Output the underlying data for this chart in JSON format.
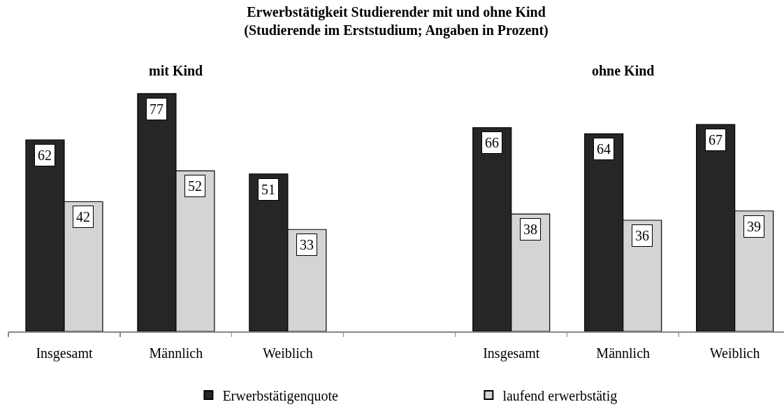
{
  "chart_data": {
    "type": "bar",
    "title": "Erwerbstätigkeit Studierender mit und ohne Kind\n(Studierende im Erststudium; Angaben in Prozent)",
    "categories": [
      "Insgesamt",
      "Männlich",
      "Weiblich",
      null,
      "Insgesamt",
      "Männlich",
      "Weiblich"
    ],
    "series": [
      {
        "name": "Erwerbstätigenquote",
        "color": "#262626",
        "values": [
          62,
          77,
          51,
          null,
          66,
          64,
          67
        ]
      },
      {
        "name": "laufend erwerbstätig",
        "color": "#d4d4d4",
        "values": [
          42,
          52,
          33,
          null,
          38,
          36,
          39
        ]
      }
    ],
    "annotations": [
      "mit Kind",
      "ohne Kind"
    ],
    "data_labels": true,
    "legend": "bottom",
    "grid": false
  }
}
